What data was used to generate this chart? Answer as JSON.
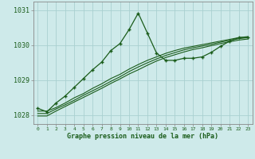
{
  "xlabel": "Graphe pression niveau de la mer (hPa)",
  "bg_color": "#ceeaea",
  "grid_color": "#aad0d0",
  "line_color": "#1a5c1a",
  "x": [
    0,
    1,
    2,
    3,
    4,
    5,
    6,
    7,
    8,
    9,
    10,
    11,
    12,
    13,
    14,
    15,
    16,
    17,
    18,
    19,
    20,
    21,
    22,
    23
  ],
  "series_main": [
    1028.2,
    1028.1,
    1028.35,
    1028.55,
    1028.8,
    1029.05,
    1029.3,
    1029.52,
    1029.85,
    1030.05,
    1030.45,
    1030.92,
    1030.35,
    1029.78,
    1029.57,
    1029.57,
    1029.63,
    1029.63,
    1029.67,
    1029.8,
    1029.97,
    1030.12,
    1030.22,
    1030.23
  ],
  "series_smooth1": [
    1028.12,
    1028.12,
    1028.22,
    1028.35,
    1028.5,
    1028.62,
    1028.77,
    1028.9,
    1029.05,
    1029.17,
    1029.32,
    1029.45,
    1029.57,
    1029.67,
    1029.77,
    1029.85,
    1029.92,
    1029.97,
    1030.02,
    1030.07,
    1030.12,
    1030.17,
    1030.22,
    1030.25
  ],
  "series_smooth2": [
    1028.05,
    1028.05,
    1028.18,
    1028.3,
    1028.43,
    1028.57,
    1028.7,
    1028.83,
    1028.97,
    1029.1,
    1029.25,
    1029.38,
    1029.5,
    1029.61,
    1029.71,
    1029.79,
    1029.87,
    1029.93,
    1029.98,
    1030.03,
    1030.09,
    1030.14,
    1030.19,
    1030.22
  ],
  "series_smooth3": [
    1027.98,
    1027.98,
    1028.12,
    1028.25,
    1028.38,
    1028.51,
    1028.64,
    1028.77,
    1028.91,
    1029.04,
    1029.18,
    1029.3,
    1029.43,
    1029.55,
    1029.65,
    1029.73,
    1029.81,
    1029.88,
    1029.93,
    1029.99,
    1030.05,
    1030.1,
    1030.15,
    1030.18
  ],
  "ylim": [
    1027.75,
    1031.25
  ],
  "yticks": [
    1028,
    1029,
    1030,
    1031
  ],
  "xticks": [
    0,
    1,
    2,
    3,
    4,
    5,
    6,
    7,
    8,
    9,
    10,
    11,
    12,
    13,
    14,
    15,
    16,
    17,
    18,
    19,
    20,
    21,
    22,
    23
  ]
}
